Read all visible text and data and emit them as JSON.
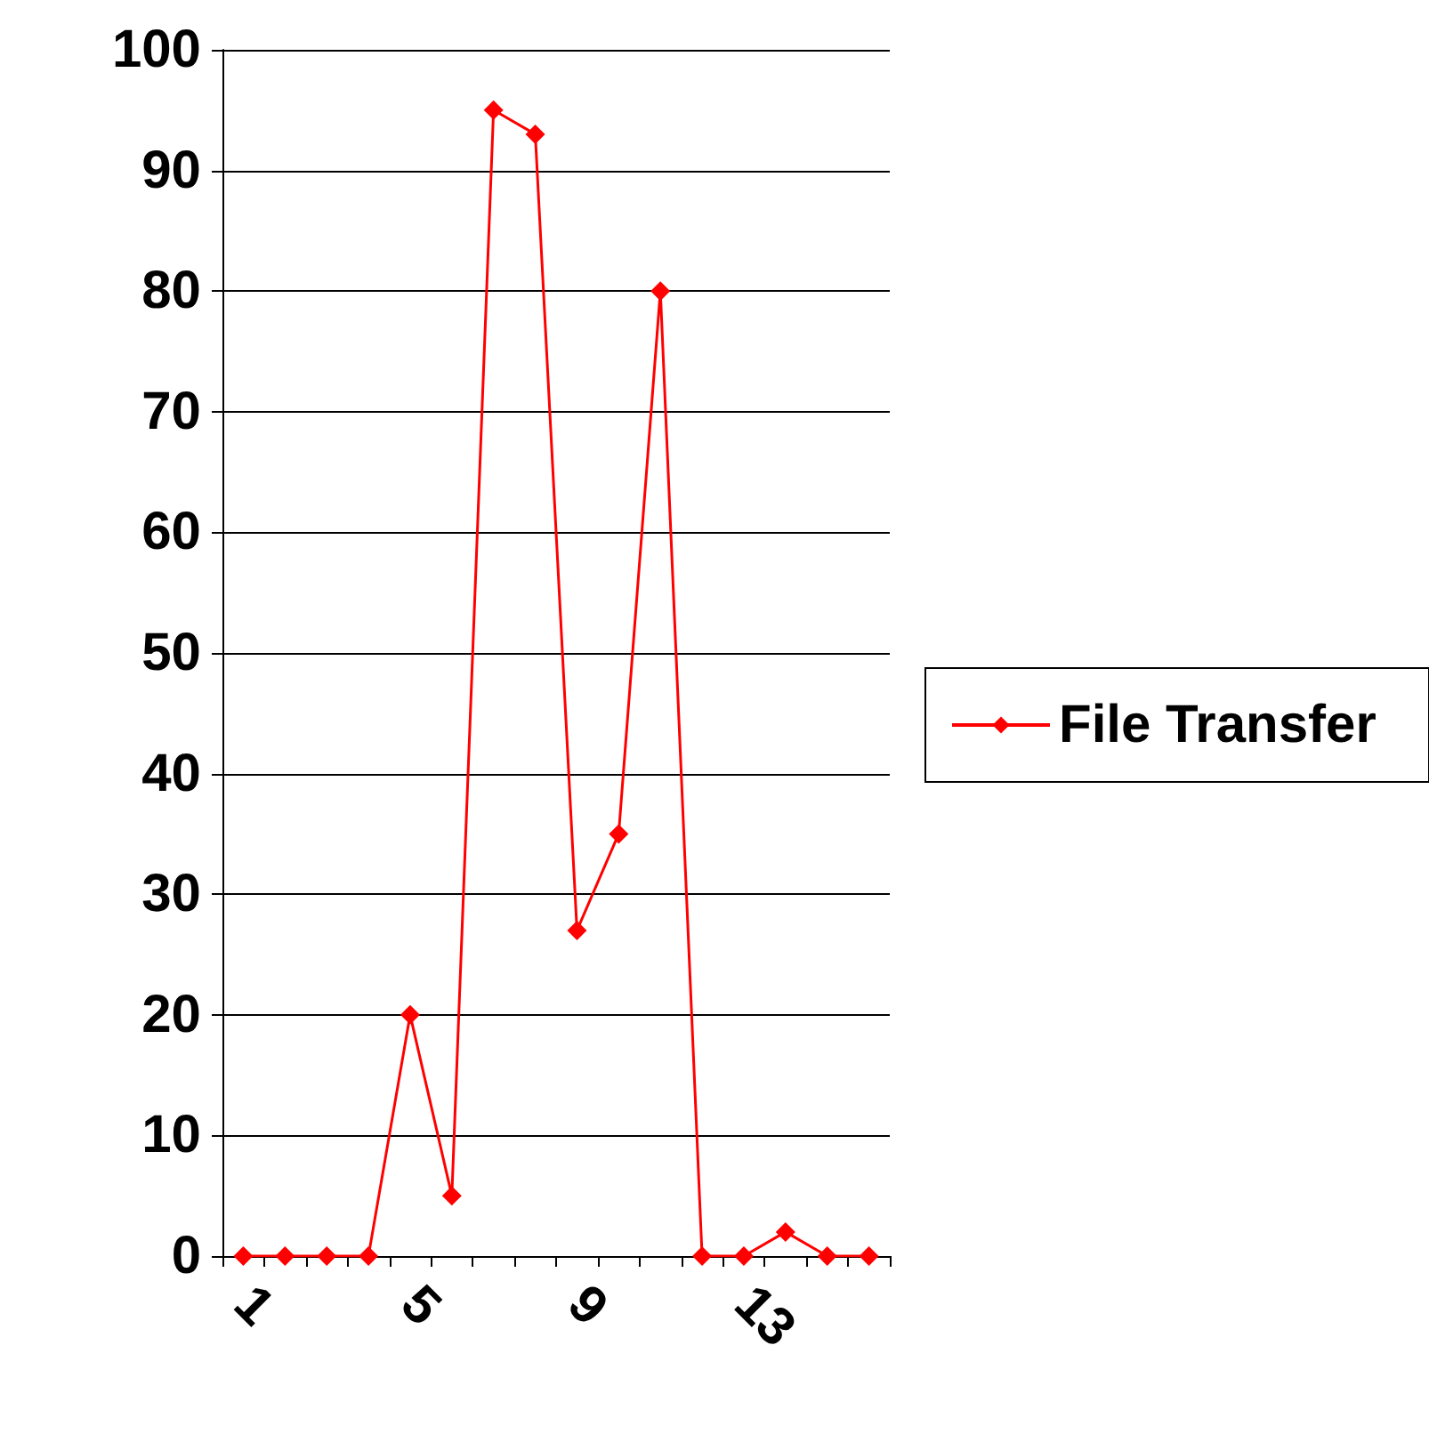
{
  "chart_data": {
    "type": "line",
    "categories": [
      "1",
      null,
      null,
      null,
      "5",
      null,
      null,
      null,
      "9",
      null,
      null,
      null,
      "13",
      null,
      null,
      null
    ],
    "series": [
      {
        "name": "File Transfer",
        "color": "#ff0000",
        "values": [
          0,
          0,
          0,
          0,
          20,
          5,
          95,
          93,
          27,
          35,
          80,
          0,
          0,
          2,
          0,
          0
        ]
      }
    ],
    "ylim": [
      0,
      100
    ],
    "yticks": [
      0,
      10,
      20,
      30,
      40,
      50,
      60,
      70,
      80,
      90,
      100
    ],
    "grid": "y",
    "legend": "right",
    "marker": "diamond",
    "line_style": "solid"
  }
}
